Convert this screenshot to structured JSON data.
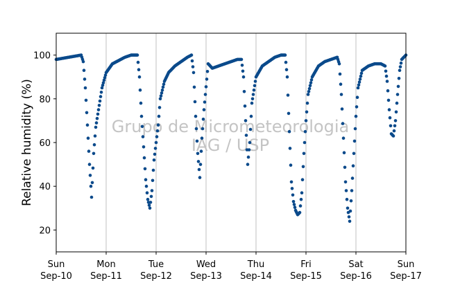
{
  "chart_data": {
    "type": "scatter",
    "title": "",
    "xlabel": "",
    "ylabel": "Relative humidity (%)",
    "ylim": [
      10,
      110
    ],
    "yticks": [
      20,
      40,
      60,
      80,
      100
    ],
    "xlim": [
      "2017-09-10",
      "2017-09-17"
    ],
    "xticks": [
      {
        "day": "Sun",
        "date": "Sep-10"
      },
      {
        "day": "Mon",
        "date": "Sep-11"
      },
      {
        "day": "Tue",
        "date": "Sep-12"
      },
      {
        "day": "Wed",
        "date": "Sep-13"
      },
      {
        "day": "Thu",
        "date": "Sep-14"
      },
      {
        "day": "Fri",
        "date": "Sep-15"
      },
      {
        "day": "Sat",
        "date": "Sep-16"
      },
      {
        "day": "Sun",
        "date": "Sep-17"
      }
    ],
    "grid": "vertical lines at day boundaries",
    "marker_color": "#0b4a8b",
    "watermark": [
      "Grupo de Micrometeorologia",
      "IAG / USP"
    ],
    "series": [
      {
        "points": [
          [
            "2017-09-10 00:00",
            98
          ],
          [
            "2017-09-10 03:00",
            98.5
          ],
          [
            "2017-09-10 06:00",
            99
          ],
          [
            "2017-09-10 09:00",
            99.5
          ],
          [
            "2017-09-10 12:00",
            100
          ],
          [
            "2017-09-10 13:00",
            97
          ],
          [
            "2017-09-10 14:00",
            85
          ],
          [
            "2017-09-10 15:00",
            68
          ],
          [
            "2017-09-10 16:00",
            50
          ],
          [
            "2017-09-10 17:00",
            35
          ],
          [
            "2017-09-10 18:00",
            55
          ],
          [
            "2017-09-10 19:00",
            67
          ],
          [
            "2017-09-10 20:00",
            73
          ],
          [
            "2017-09-10 22:00",
            85
          ],
          [
            "2017-09-11 00:00",
            92
          ],
          [
            "2017-09-11 03:00",
            96
          ],
          [
            "2017-09-11 06:00",
            97.5
          ],
          [
            "2017-09-11 09:00",
            99
          ],
          [
            "2017-09-11 12:00",
            100
          ],
          [
            "2017-09-11 15:00",
            100
          ],
          [
            "2017-09-11 16:00",
            90
          ],
          [
            "2017-09-11 17:00",
            72
          ],
          [
            "2017-09-11 18:00",
            58
          ],
          [
            "2017-09-11 19:00",
            43
          ],
          [
            "2017-09-11 20:00",
            34
          ],
          [
            "2017-09-11 21:00",
            30
          ],
          [
            "2017-09-11 22:00",
            38
          ],
          [
            "2017-09-11 23:00",
            52
          ],
          [
            "2017-09-12 00:00",
            60
          ],
          [
            "2017-09-12 01:00",
            68
          ],
          [
            "2017-09-12 02:00",
            80
          ],
          [
            "2017-09-12 04:00",
            88
          ],
          [
            "2017-09-12 06:00",
            92
          ],
          [
            "2017-09-12 09:00",
            95
          ],
          [
            "2017-09-12 12:00",
            97
          ],
          [
            "2017-09-12 15:00",
            99
          ],
          [
            "2017-09-12 17:00",
            100
          ],
          [
            "2017-09-12 18:00",
            92
          ],
          [
            "2017-09-12 19:00",
            72
          ],
          [
            "2017-09-12 20:00",
            55
          ],
          [
            "2017-09-12 21:00",
            44
          ],
          [
            "2017-09-12 22:00",
            62
          ],
          [
            "2017-09-12 23:00",
            75
          ],
          [
            "2017-09-13 01:00",
            96
          ],
          [
            "2017-09-13 03:00",
            94
          ],
          [
            "2017-09-13 06:00",
            95
          ],
          [
            "2017-09-13 09:00",
            96
          ],
          [
            "2017-09-13 12:00",
            97
          ],
          [
            "2017-09-13 15:00",
            98
          ],
          [
            "2017-09-13 17:00",
            98
          ],
          [
            "2017-09-13 18:00",
            90
          ],
          [
            "2017-09-13 19:00",
            70
          ],
          [
            "2017-09-13 20:00",
            50
          ],
          [
            "2017-09-13 21:00",
            60
          ],
          [
            "2017-09-13 22:00",
            78
          ],
          [
            "2017-09-14 00:00",
            90
          ],
          [
            "2017-09-14 03:00",
            95
          ],
          [
            "2017-09-14 06:00",
            97
          ],
          [
            "2017-09-14 09:00",
            99
          ],
          [
            "2017-09-14 12:00",
            100
          ],
          [
            "2017-09-14 14:00",
            100
          ],
          [
            "2017-09-14 15:00",
            90
          ],
          [
            "2017-09-14 16:00",
            65
          ],
          [
            "2017-09-14 17:00",
            42
          ],
          [
            "2017-09-14 18:00",
            33
          ],
          [
            "2017-09-14 19:00",
            29
          ],
          [
            "2017-09-14 20:00",
            27
          ],
          [
            "2017-09-14 21:00",
            28
          ],
          [
            "2017-09-14 22:00",
            37
          ],
          [
            "2017-09-14 23:00",
            55
          ],
          [
            "2017-09-15 00:00",
            70
          ],
          [
            "2017-09-15 01:00",
            82
          ],
          [
            "2017-09-15 03:00",
            90
          ],
          [
            "2017-09-15 06:00",
            95
          ],
          [
            "2017-09-15 09:00",
            97
          ],
          [
            "2017-09-15 12:00",
            98
          ],
          [
            "2017-09-15 15:00",
            99
          ],
          [
            "2017-09-15 16:00",
            96
          ],
          [
            "2017-09-15 17:00",
            82
          ],
          [
            "2017-09-15 18:00",
            62
          ],
          [
            "2017-09-15 19:00",
            42
          ],
          [
            "2017-09-15 20:00",
            30
          ],
          [
            "2017-09-15 21:00",
            24
          ],
          [
            "2017-09-15 22:00",
            38
          ],
          [
            "2017-09-15 23:00",
            55
          ],
          [
            "2017-09-16 00:00",
            72
          ],
          [
            "2017-09-16 01:00",
            85
          ],
          [
            "2017-09-16 03:00",
            93
          ],
          [
            "2017-09-16 06:00",
            95
          ],
          [
            "2017-09-16 09:00",
            96
          ],
          [
            "2017-09-16 12:00",
            96
          ],
          [
            "2017-09-16 14:00",
            95
          ],
          [
            "2017-09-16 15:00",
            88
          ],
          [
            "2017-09-16 16:00",
            75
          ],
          [
            "2017-09-16 17:00",
            64
          ],
          [
            "2017-09-16 18:00",
            63
          ],
          [
            "2017-09-16 19:00",
            70
          ],
          [
            "2017-09-16 20:00",
            82
          ],
          [
            "2017-09-16 21:00",
            93
          ],
          [
            "2017-09-16 22:00",
            98
          ],
          [
            "2017-09-17 00:00",
            100
          ]
        ]
      }
    ]
  }
}
